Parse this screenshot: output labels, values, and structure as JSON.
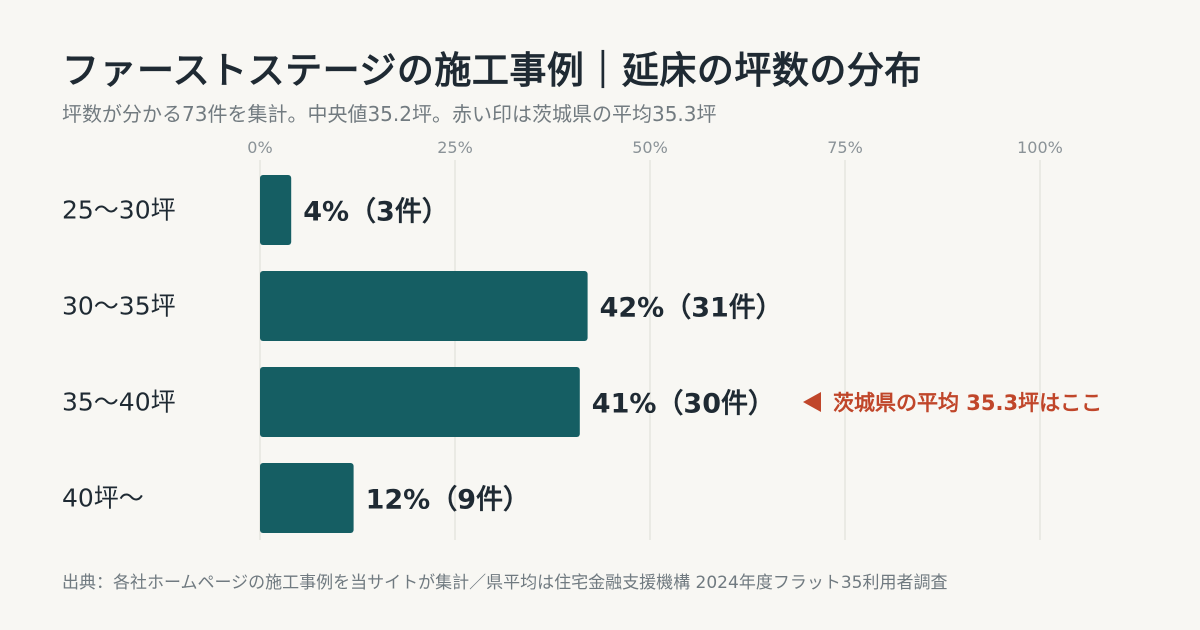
{
  "header": {
    "title": "ファーストステージの施工事例｜延床の坪数の分布",
    "subtitle": "坪数が分かる73件を集計。中央値35.2坪。赤い印は茨城県の平均35.3坪"
  },
  "footer": {
    "source": "出典：各社ホームページの施工事例を当サイトが集計／県平均は住宅金融支援機構 2024年度フラット35利用者調査"
  },
  "colors": {
    "bar": "#155e63",
    "grid": "#dcdcd6",
    "annotation": "#c0462a",
    "background": "#f8f7f3"
  },
  "chart_data": {
    "type": "bar",
    "orientation": "horizontal",
    "categories": [
      "25〜30坪",
      "30〜35坪",
      "35〜40坪",
      "40坪〜"
    ],
    "values": [
      4,
      42,
      41,
      12
    ],
    "counts": [
      3,
      31,
      30,
      9
    ],
    "value_labels": [
      "4%（3件）",
      "42%（31件）",
      "41%（30件）",
      "12%（9件）"
    ],
    "xlim": [
      0,
      100
    ],
    "xticks": [
      0,
      25,
      50,
      75,
      100
    ],
    "xtick_labels": [
      "0%",
      "25%",
      "50%",
      "75%",
      "100%"
    ],
    "grid": true,
    "annotation": {
      "category_index": 2,
      "text": "茨城県の平均 35.3坪はここ",
      "marker": "◀"
    }
  }
}
